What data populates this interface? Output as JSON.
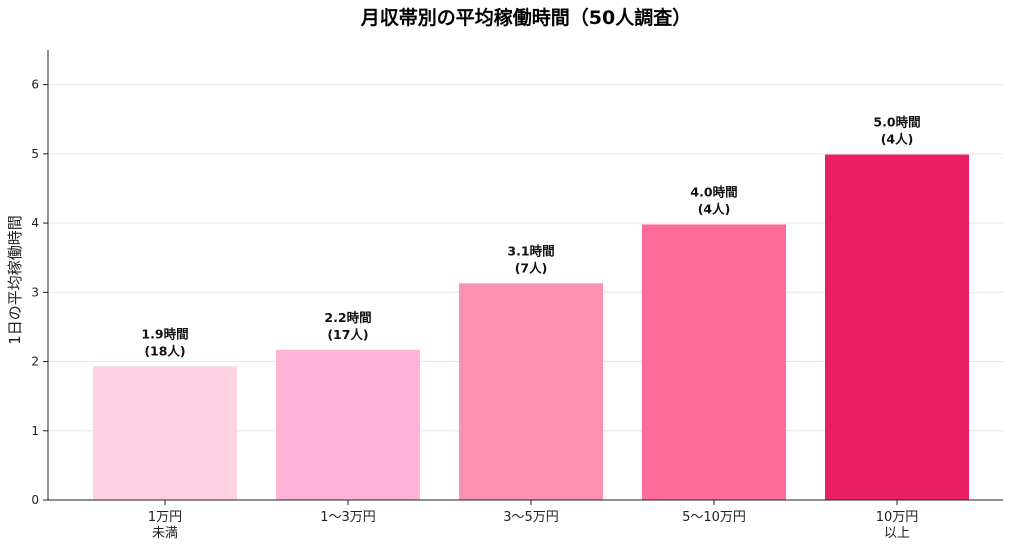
{
  "chart_data": {
    "type": "bar",
    "title": "月収帯別の平均稼働時間（50人調査）",
    "xlabel": "",
    "ylabel": "1日の平均稼働時間",
    "ylim": [
      0,
      6.5
    ],
    "yticks": [
      0,
      1,
      2,
      3,
      4,
      5,
      6
    ],
    "grid": "horizontal",
    "categories": [
      [
        "1万円",
        "未満"
      ],
      [
        "1〜3万円"
      ],
      [
        "3〜5万円"
      ],
      [
        "5〜10万円"
      ],
      [
        "10万円",
        "以上"
      ]
    ],
    "values": [
      1.93,
      2.17,
      3.13,
      3.98,
      4.99
    ],
    "data_labels": [
      [
        "1.9時間",
        "(18人)"
      ],
      [
        "2.2時間",
        "(17人)"
      ],
      [
        "3.1時間",
        "(7人)"
      ],
      [
        "4.0時間",
        "(4人)"
      ],
      [
        "5.0時間",
        "(4人)"
      ]
    ],
    "colors": [
      "#ffd1e3",
      "#ffb3d6",
      "#ff8fb0",
      "#ff6b9a",
      "#e91e63"
    ]
  }
}
